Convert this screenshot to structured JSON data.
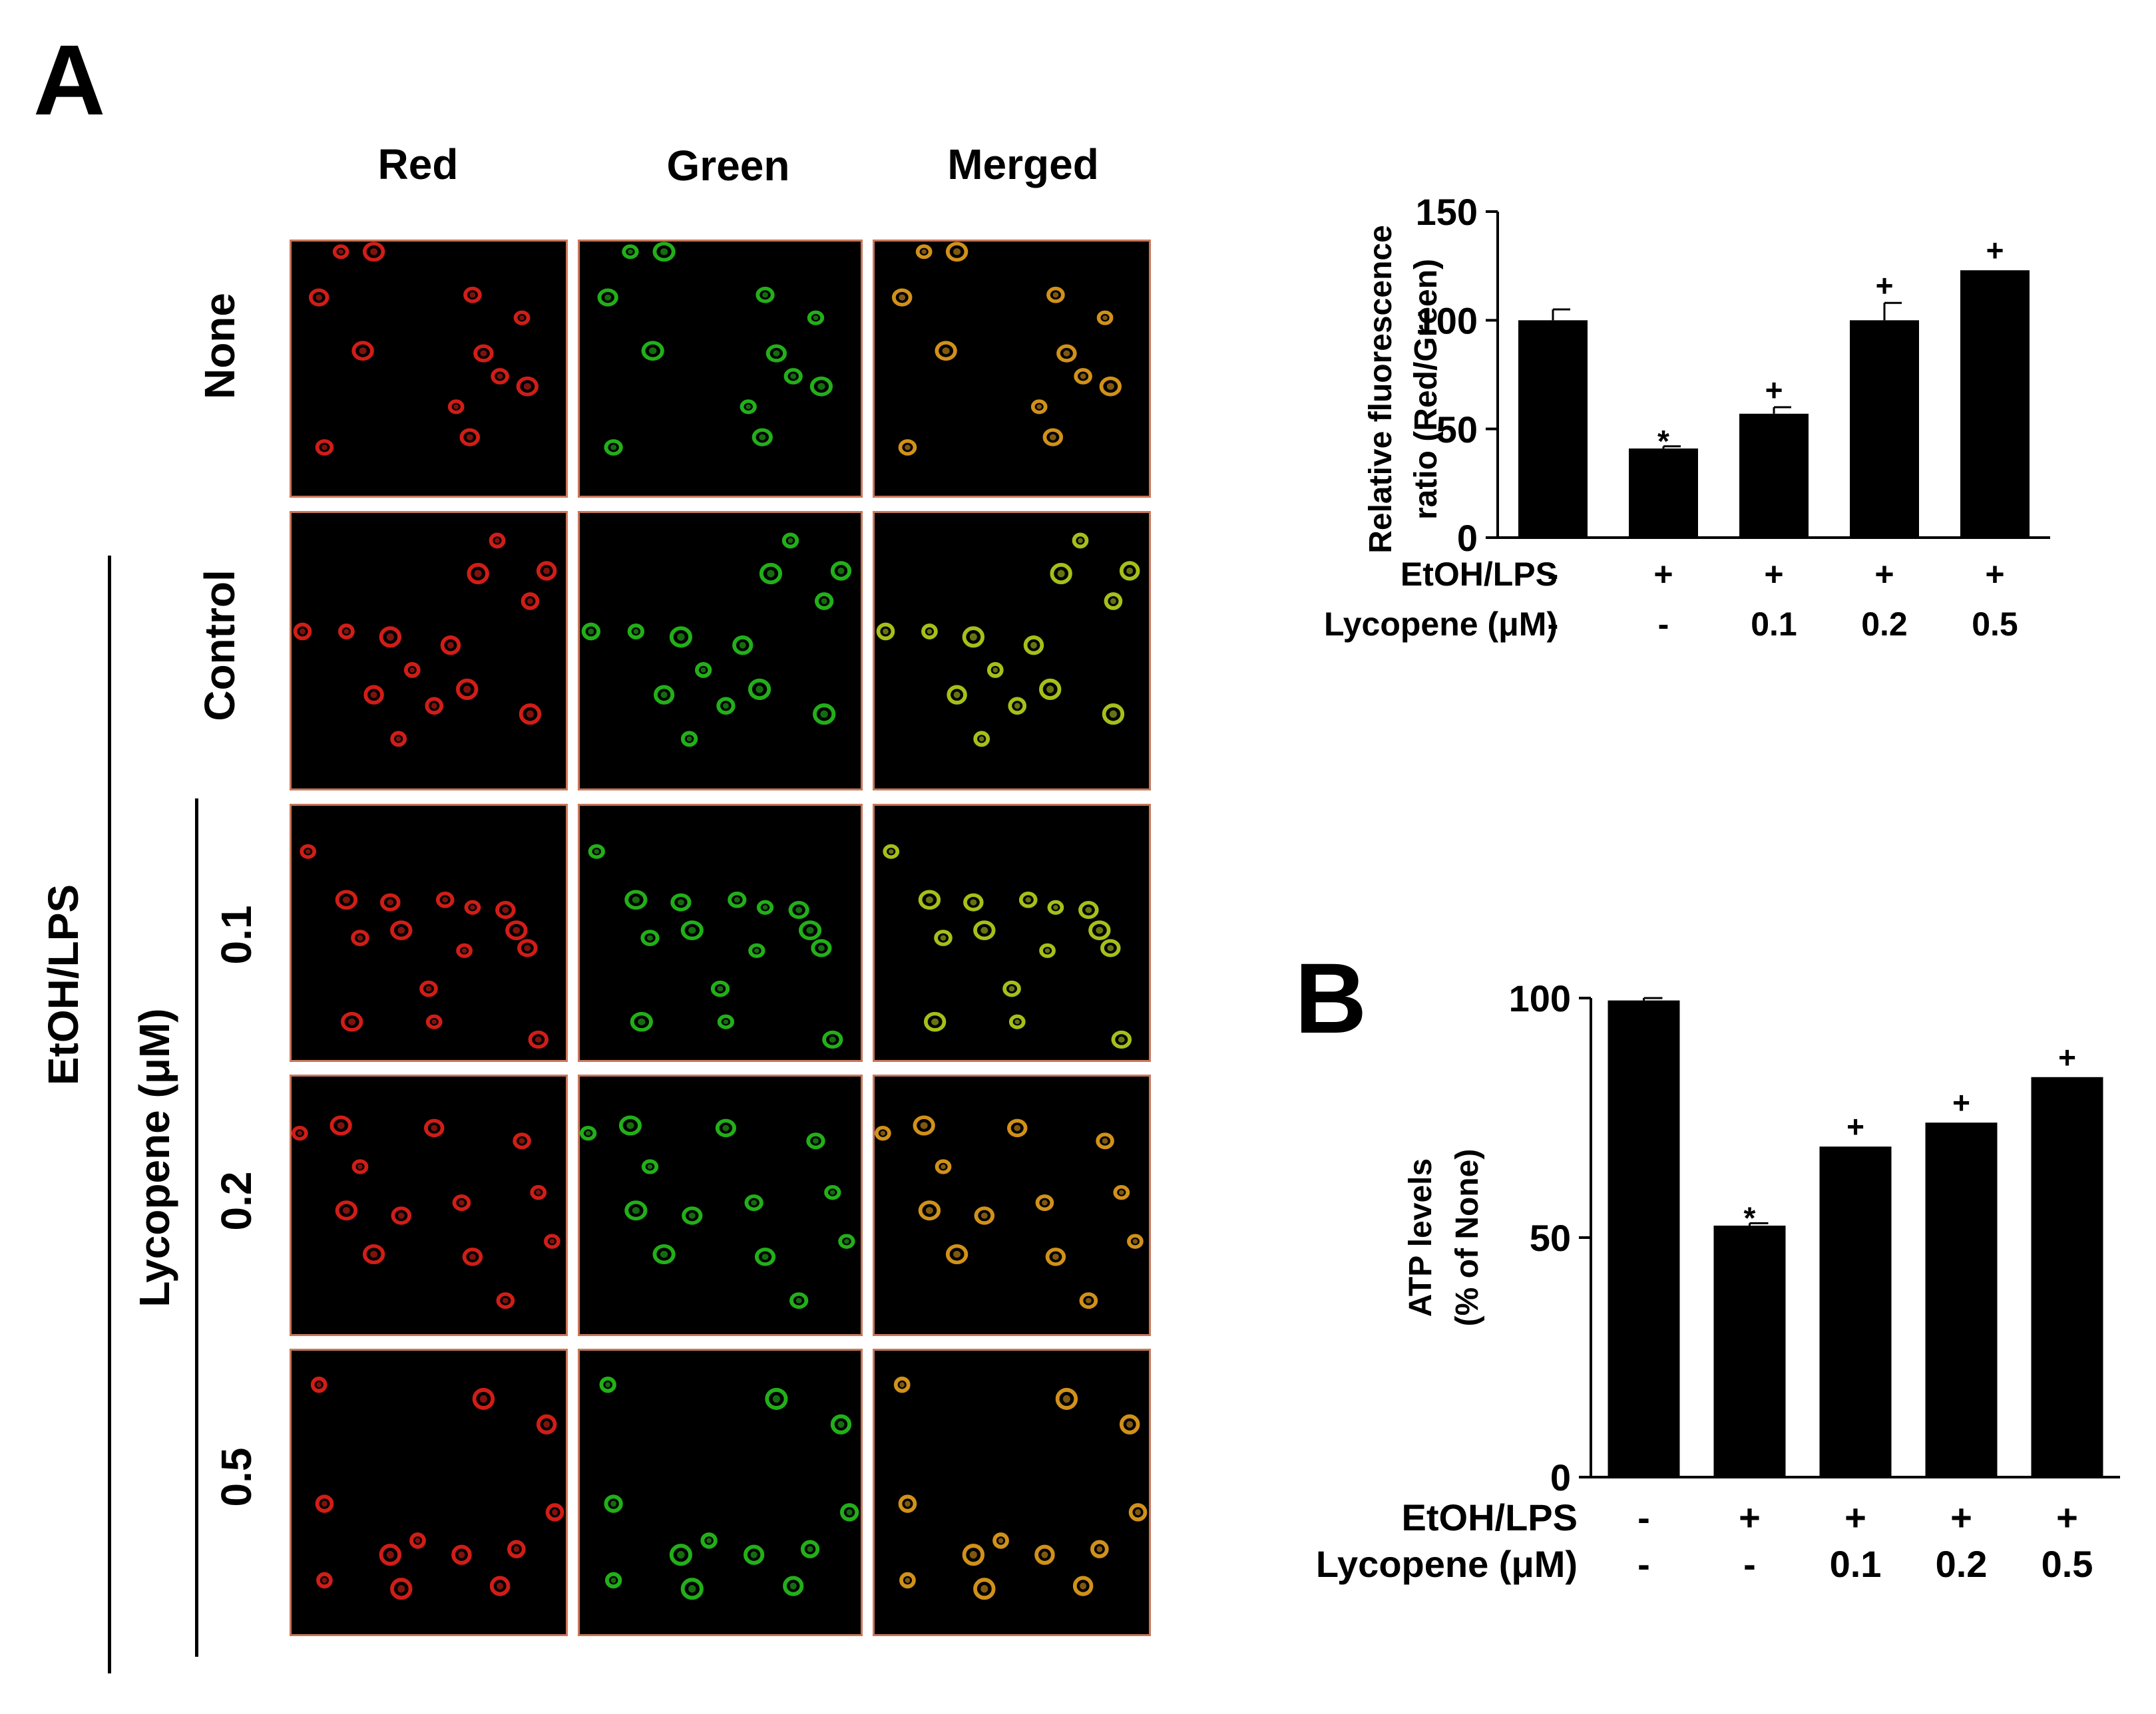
{
  "panel_a": {
    "letter": "A",
    "micrograph_columns": [
      "Red",
      "Green",
      "Merged"
    ],
    "micrograph_rows": [
      "None",
      "Control",
      "0.1",
      "0.2",
      "0.5"
    ],
    "group_label": "EtOH/LPS",
    "subgroup_label": "Lycopene (μM)",
    "channel_colors": {
      "red": "#e8201a",
      "green": "#26c21c",
      "merged": "#e8a11c",
      "merged_control": "#b8d41c"
    }
  },
  "panel_b": {
    "letter": "B"
  },
  "chart_data": [
    {
      "type": "bar",
      "title": "",
      "ylabel": "Relative fluorescence ratio (Red/Green)",
      "ylabel_lines": [
        "Relative fluorescence",
        "ratio (Red/Green)"
      ],
      "ylim": [
        0,
        150
      ],
      "yticks": [
        "0",
        "50",
        "100",
        "150"
      ],
      "ytick_values": [
        0,
        50,
        100,
        150
      ],
      "values": [
        100,
        41,
        57,
        100,
        123
      ],
      "errors": [
        5,
        1,
        3,
        8,
        0
      ],
      "markers": [
        "",
        "*",
        "+",
        "+",
        "+"
      ],
      "row_labels": [
        "EtOH/LPS",
        "Lycopene (μM)"
      ],
      "rows": [
        [
          "-",
          "+",
          "+",
          "+",
          "+"
        ],
        [
          "-",
          "-",
          "0.1",
          "0.2",
          "0.5"
        ]
      ],
      "bar_color": "#000000",
      "grid": false
    },
    {
      "type": "bar",
      "title": "",
      "ylabel": "ATP levels (% of None)",
      "ylabel_lines": [
        "ATP levels",
        "(% of None)"
      ],
      "ylim": [
        0,
        100
      ],
      "yticks": [
        "0",
        "50",
        "100"
      ],
      "ytick_values": [
        0,
        50,
        100
      ],
      "values": [
        99.5,
        52.5,
        69,
        74,
        83.5
      ],
      "errors": [
        0.5,
        0.5,
        0,
        0,
        0
      ],
      "markers": [
        "",
        "*",
        "+",
        "+",
        "+"
      ],
      "row_labels": [
        "EtOH/LPS",
        "Lycopene (μM)"
      ],
      "rows": [
        [
          "-",
          "+",
          "+",
          "+",
          "+"
        ],
        [
          "-",
          "-",
          "0.1",
          "0.2",
          "0.5"
        ]
      ],
      "bar_color": "#000000",
      "grid": false
    }
  ]
}
